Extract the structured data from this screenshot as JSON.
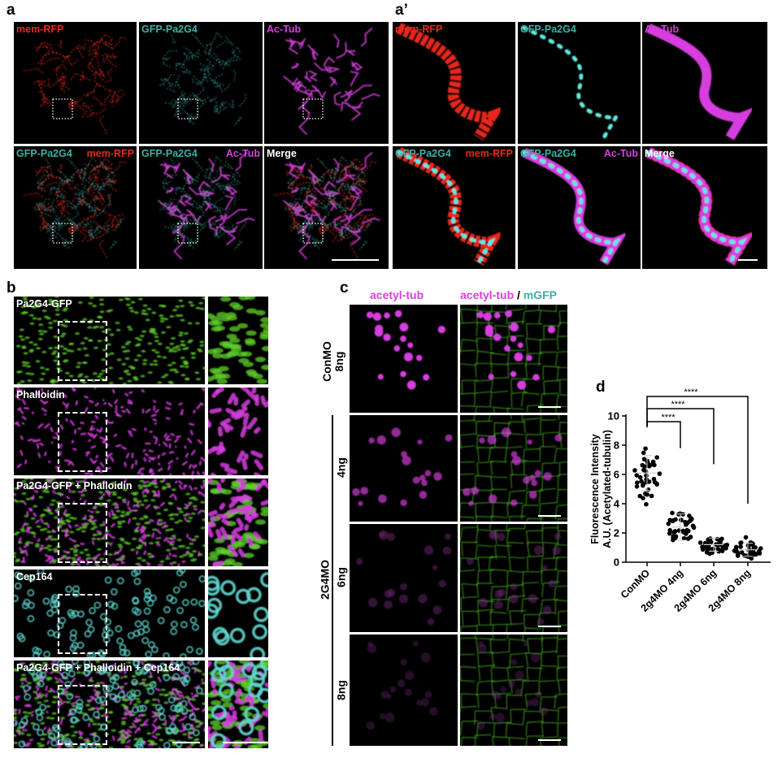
{
  "colors": {
    "red": "#e8281e",
    "cyan": "#3bb0a6",
    "magenta": "#d83ee0",
    "white": "#ffffff",
    "green": "#5fd02a"
  },
  "panel_a": {
    "label": "a",
    "row1": [
      "mem-RFP",
      "GFP-Pa2G4",
      "Ac-Tub"
    ],
    "row2": [
      [
        "GFP-Pa2G4",
        "mem-RFP"
      ],
      [
        "GFP-Pa2G4",
        "Ac-Tub"
      ],
      [
        "Merge"
      ]
    ]
  },
  "panel_a2": {
    "label": "a’",
    "row1": [
      "mem-RFP",
      "GFP-Pa2G4",
      "Ac-Tub"
    ],
    "row2": [
      [
        "GFP-Pa2G4",
        "mem-RFP"
      ],
      [
        "GFP-Pa2G4",
        "Ac-Tub"
      ],
      [
        "Merge"
      ]
    ]
  },
  "panel_b": {
    "label": "b",
    "rows": [
      "Pa2G4-GFP",
      "Phalloidin",
      "Pa2G4-GFP + Phalloidin",
      "Cep164",
      "Pa2G4-GFP + Phalloidin + Cep164"
    ]
  },
  "panel_c": {
    "label": "c",
    "col1_header": "acetyl-tub",
    "col2_header_a": "acetyl-tub",
    "col2_header_sep": " / ",
    "col2_header_b": "mGFP",
    "control_label": "ConMO",
    "control_dose": "8ng",
    "group_label": "2G4MO",
    "doses": [
      "4ng",
      "6ng",
      "8ng"
    ]
  },
  "panel_d": {
    "label": "d"
  },
  "chart_data": {
    "type": "scatter",
    "ylabel": [
      "Fluorescence Intensity",
      "A.U. (Acetylated-tubulin)"
    ],
    "ylim": [
      0,
      10
    ],
    "yticks": [
      "0",
      "2",
      "4",
      "6",
      "8",
      "10"
    ],
    "categories": [
      "ConMO",
      "2g4MO 4ng",
      "2g4MO 6ng",
      "2g4MO 8ng"
    ],
    "groups": [
      {
        "mean": 6.1,
        "sd": 1.2,
        "min": 3.5,
        "max": 8.8
      },
      {
        "mean": 2.4,
        "sd": 0.9,
        "min": 0.6,
        "max": 4.5
      },
      {
        "mean": 1.2,
        "sd": 0.45,
        "min": 0.5,
        "max": 2.2
      },
      {
        "mean": 0.85,
        "sd": 0.45,
        "min": 0.1,
        "max": 1.7
      }
    ],
    "significance": [
      {
        "from": "ConMO",
        "to": "2g4MO 4ng",
        "label": "****"
      },
      {
        "from": "ConMO",
        "to": "2g4MO 6ng",
        "label": "****"
      },
      {
        "from": "ConMO",
        "to": "2g4MO 8ng",
        "label": "****"
      }
    ],
    "grid": false
  }
}
